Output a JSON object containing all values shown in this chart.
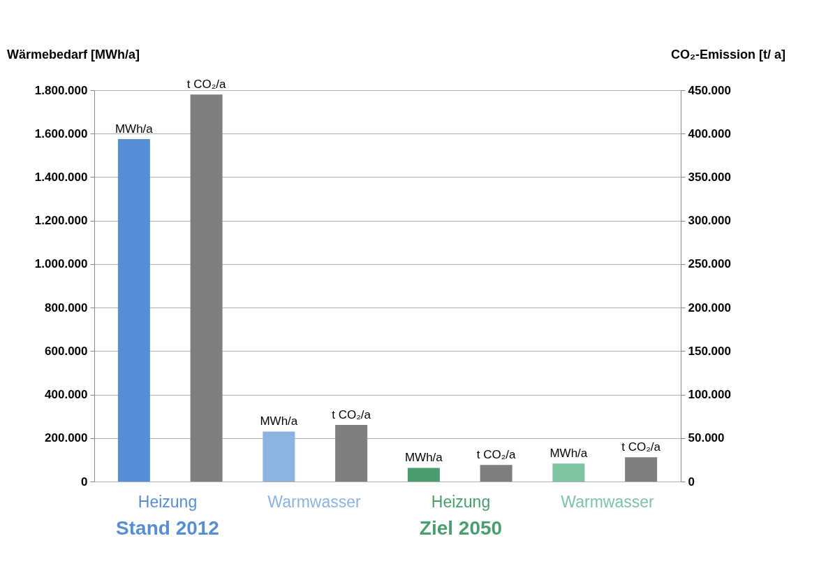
{
  "chart_data": {
    "type": "bar",
    "ylabel": "Wärmebedarf [MWh/a]",
    "y2label": "CO₂-Emission [t/ a]",
    "categories": [
      "Heizung",
      "Warmwasser",
      "Heizung",
      "Warmwasser"
    ],
    "series": [
      {
        "axis": "y",
        "colors": [
          "#558ed5",
          "#8db3e2",
          "#4a9d6e",
          "#7fc4a0"
        ],
        "values": [
          1575000,
          230000,
          63000,
          83000
        ],
        "value_labels": [
          "MWh/a",
          "MWh/a",
          "MWh/a",
          "MWh/a"
        ]
      },
      {
        "axis": "y2",
        "color": "#7f7f7f",
        "values": [
          445000,
          65000,
          19000,
          28000
        ],
        "value_labels": [
          "t CO₂/a",
          "t CO₂/a",
          "t CO₂/a",
          "t CO₂/a"
        ]
      }
    ],
    "ylim": [
      0,
      1800000
    ],
    "yticks": [
      0,
      {
        "value": 200000,
        "label": "200.000"
      },
      {
        "value": 400000,
        "label": "400.000"
      },
      {
        "value": 600000,
        "label": "600.000"
      },
      {
        "value": 800000,
        "label": "800.000"
      },
      {
        "value": 1000000,
        "label": "1.000.000"
      },
      {
        "value": 1200000,
        "label": "1.200.000"
      },
      {
        "value": 1400000,
        "label": "1.400.000"
      },
      {
        "value": 1600000,
        "label": "1.600.000"
      },
      {
        "value": 1800000,
        "label": "1.800.000"
      }
    ],
    "y2lim": [
      0,
      450000
    ],
    "y2ticks": [
      0,
      {
        "value": 50000,
        "label": "50.000"
      },
      {
        "value": 100000,
        "label": "100.000"
      },
      {
        "value": 150000,
        "label": "150.000"
      },
      {
        "value": 200000,
        "label": "200.000"
      },
      {
        "value": 250000,
        "label": "250.000"
      },
      {
        "value": 300000,
        "label": "300.000"
      },
      {
        "value": 350000,
        "label": "350.000"
      },
      {
        "value": 400000,
        "label": "400.000"
      },
      {
        "value": 450000,
        "label": "450.000"
      }
    ],
    "grid": "y",
    "annotations": [
      "Stand 2012",
      "Ziel 2050"
    ]
  }
}
